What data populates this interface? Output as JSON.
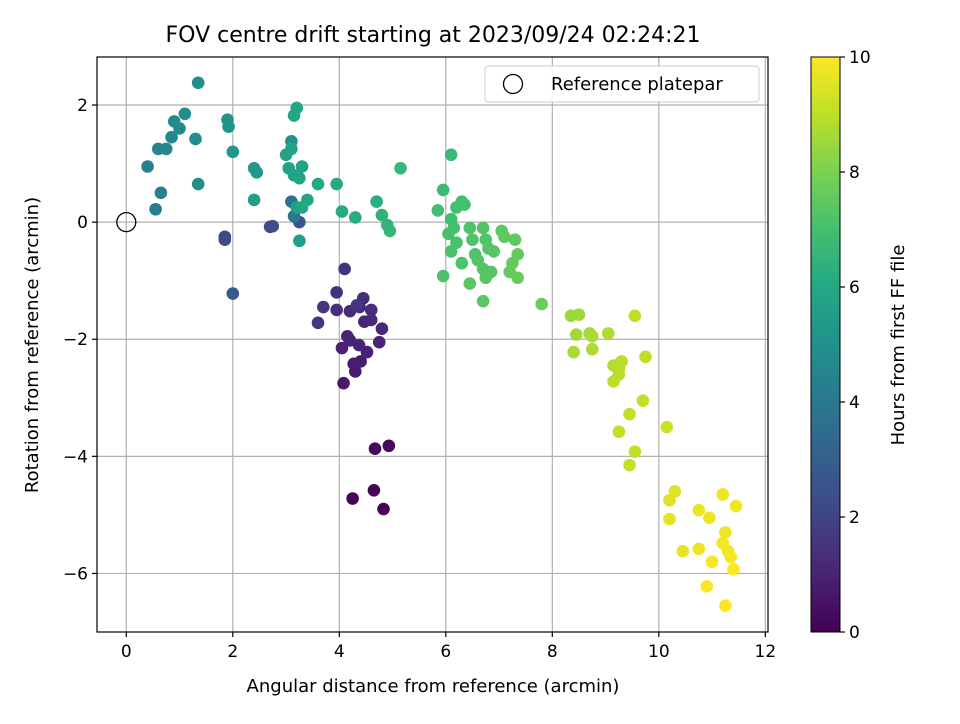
{
  "chart_data": {
    "type": "scatter",
    "title": "FOV centre drift starting at 2023/09/24 02:24:21",
    "xlabel": "Angular distance from reference (arcmin)",
    "ylabel": "Rotation from reference (arcmin)",
    "xlim": [
      -0.55,
      12.05
    ],
    "ylim": [
      -7.0,
      2.82
    ],
    "xticks": [
      0,
      2,
      4,
      6,
      8,
      10,
      12
    ],
    "xtick_labels": [
      "0",
      "2",
      "4",
      "6",
      "8",
      "10",
      "12"
    ],
    "yticks": [
      2,
      0,
      -2,
      -4,
      -6
    ],
    "ytick_labels": [
      "2",
      "0",
      "−2",
      "−4",
      "−6"
    ],
    "grid": true,
    "legend": {
      "position": "top-right",
      "entries": [
        "Reference platepar"
      ]
    },
    "reference_point": {
      "x": 0,
      "y": 0
    },
    "colorbar": {
      "label": "Hours from first FF file",
      "colormap": "viridis",
      "range": [
        0,
        10
      ],
      "ticks": [
        0,
        2,
        4,
        6,
        8,
        10
      ],
      "tick_labels": [
        "0",
        "2",
        "4",
        "6",
        "8",
        "10"
      ]
    },
    "points": [
      {
        "x": 4.25,
        "y": -4.72,
        "c": 0.1
      },
      {
        "x": 4.65,
        "y": -4.58,
        "c": 0.1
      },
      {
        "x": 4.83,
        "y": -4.9,
        "c": 0.15
      },
      {
        "x": 4.67,
        "y": -3.87,
        "c": 0.2
      },
      {
        "x": 4.93,
        "y": -3.82,
        "c": 0.25
      },
      {
        "x": 4.08,
        "y": -2.75,
        "c": 0.7
      },
      {
        "x": 4.3,
        "y": -2.55,
        "c": 0.75
      },
      {
        "x": 4.27,
        "y": -2.42,
        "c": 0.8
      },
      {
        "x": 4.4,
        "y": -2.38,
        "c": 0.8
      },
      {
        "x": 4.52,
        "y": -2.22,
        "c": 0.9
      },
      {
        "x": 4.05,
        "y": -2.15,
        "c": 0.9
      },
      {
        "x": 4.2,
        "y": -2.02,
        "c": 0.95
      },
      {
        "x": 4.37,
        "y": -2.1,
        "c": 1.0
      },
      {
        "x": 4.75,
        "y": -2.05,
        "c": 1.0
      },
      {
        "x": 4.15,
        "y": -1.95,
        "c": 1.05
      },
      {
        "x": 4.47,
        "y": -1.7,
        "c": 1.1
      },
      {
        "x": 4.8,
        "y": -1.82,
        "c": 1.1
      },
      {
        "x": 4.6,
        "y": -1.67,
        "c": 1.15
      },
      {
        "x": 4.38,
        "y": -1.45,
        "c": 1.2
      },
      {
        "x": 4.2,
        "y": -1.52,
        "c": 1.2
      },
      {
        "x": 4.45,
        "y": -1.3,
        "c": 1.25
      },
      {
        "x": 4.6,
        "y": -1.5,
        "c": 1.3
      },
      {
        "x": 3.95,
        "y": -1.5,
        "c": 1.35
      },
      {
        "x": 3.95,
        "y": -1.2,
        "c": 1.4
      },
      {
        "x": 4.1,
        "y": -0.8,
        "c": 1.45
      },
      {
        "x": 3.7,
        "y": -1.45,
        "c": 1.5
      },
      {
        "x": 3.6,
        "y": -1.72,
        "c": 1.55
      },
      {
        "x": 4.33,
        "y": -1.42,
        "c": 1.6
      },
      {
        "x": 1.85,
        "y": -0.25,
        "c": 2.2
      },
      {
        "x": 1.85,
        "y": -0.3,
        "c": 2.2
      },
      {
        "x": 2.0,
        "y": -1.22,
        "c": 2.8
      },
      {
        "x": 2.7,
        "y": -0.08,
        "c": 2.3
      },
      {
        "x": 2.75,
        "y": -0.07,
        "c": 2.35
      },
      {
        "x": 3.25,
        "y": 0.0,
        "c": 2.5
      },
      {
        "x": 3.1,
        "y": 0.35,
        "c": 3.8
      },
      {
        "x": 3.15,
        "y": 0.1,
        "c": 4.0
      },
      {
        "x": 0.55,
        "y": 0.22,
        "c": 4.2
      },
      {
        "x": 0.65,
        "y": 0.5,
        "c": 4.3
      },
      {
        "x": 0.4,
        "y": 0.95,
        "c": 4.4
      },
      {
        "x": 0.6,
        "y": 1.25,
        "c": 4.5
      },
      {
        "x": 0.75,
        "y": 1.25,
        "c": 4.5
      },
      {
        "x": 0.85,
        "y": 1.45,
        "c": 4.6
      },
      {
        "x": 1.0,
        "y": 1.6,
        "c": 4.7
      },
      {
        "x": 0.9,
        "y": 1.72,
        "c": 4.8
      },
      {
        "x": 1.1,
        "y": 1.85,
        "c": 4.8
      },
      {
        "x": 1.3,
        "y": 1.42,
        "c": 4.85
      },
      {
        "x": 1.35,
        "y": 2.38,
        "c": 4.9
      },
      {
        "x": 1.35,
        "y": 0.65,
        "c": 4.95
      },
      {
        "x": 3.1,
        "y": 1.38,
        "c": 5.0
      },
      {
        "x": 1.9,
        "y": 1.75,
        "c": 5.1
      },
      {
        "x": 1.92,
        "y": 1.63,
        "c": 5.15
      },
      {
        "x": 2.0,
        "y": 1.2,
        "c": 5.3
      },
      {
        "x": 2.4,
        "y": 0.92,
        "c": 5.4
      },
      {
        "x": 2.45,
        "y": 0.85,
        "c": 5.4
      },
      {
        "x": 2.4,
        "y": 0.38,
        "c": 5.5
      },
      {
        "x": 3.2,
        "y": 0.25,
        "c": 5.6
      },
      {
        "x": 3.25,
        "y": -0.32,
        "c": 5.6
      },
      {
        "x": 3.05,
        "y": 0.92,
        "c": 5.7
      },
      {
        "x": 3.0,
        "y": 1.15,
        "c": 5.7
      },
      {
        "x": 3.1,
        "y": 1.25,
        "c": 5.75
      },
      {
        "x": 3.15,
        "y": 0.8,
        "c": 5.8
      },
      {
        "x": 3.3,
        "y": 0.95,
        "c": 5.8
      },
      {
        "x": 3.25,
        "y": 0.75,
        "c": 5.85
      },
      {
        "x": 3.15,
        "y": 1.82,
        "c": 5.9
      },
      {
        "x": 3.2,
        "y": 1.95,
        "c": 5.9
      },
      {
        "x": 3.4,
        "y": 0.38,
        "c": 5.95
      },
      {
        "x": 3.3,
        "y": 0.25,
        "c": 6.0
      },
      {
        "x": 3.6,
        "y": 0.65,
        "c": 6.0
      },
      {
        "x": 3.95,
        "y": 0.65,
        "c": 6.1
      },
      {
        "x": 4.05,
        "y": 0.18,
        "c": 6.15
      },
      {
        "x": 4.3,
        "y": 0.08,
        "c": 6.2
      },
      {
        "x": 4.7,
        "y": 0.35,
        "c": 6.3
      },
      {
        "x": 4.8,
        "y": 0.12,
        "c": 6.4
      },
      {
        "x": 4.9,
        "y": -0.05,
        "c": 6.5
      },
      {
        "x": 4.95,
        "y": -0.15,
        "c": 6.55
      },
      {
        "x": 5.15,
        "y": 0.92,
        "c": 6.6
      },
      {
        "x": 6.1,
        "y": 1.15,
        "c": 6.7
      },
      {
        "x": 5.95,
        "y": 0.55,
        "c": 6.8
      },
      {
        "x": 5.85,
        "y": 0.2,
        "c": 6.9
      },
      {
        "x": 6.1,
        "y": 0.05,
        "c": 6.9
      },
      {
        "x": 6.2,
        "y": 0.25,
        "c": 6.95
      },
      {
        "x": 6.3,
        "y": 0.35,
        "c": 7.0
      },
      {
        "x": 6.35,
        "y": 0.3,
        "c": 7.0
      },
      {
        "x": 6.15,
        "y": -0.1,
        "c": 7.05
      },
      {
        "x": 6.05,
        "y": -0.2,
        "c": 7.05
      },
      {
        "x": 6.2,
        "y": -0.35,
        "c": 7.1
      },
      {
        "x": 6.1,
        "y": -0.5,
        "c": 7.1
      },
      {
        "x": 5.95,
        "y": -0.92,
        "c": 7.15
      },
      {
        "x": 6.3,
        "y": -0.7,
        "c": 7.15
      },
      {
        "x": 6.45,
        "y": -0.1,
        "c": 7.2
      },
      {
        "x": 6.5,
        "y": -0.3,
        "c": 7.2
      },
      {
        "x": 6.55,
        "y": -0.55,
        "c": 7.2
      },
      {
        "x": 6.7,
        "y": -0.1,
        "c": 7.25
      },
      {
        "x": 6.75,
        "y": -0.3,
        "c": 7.25
      },
      {
        "x": 6.8,
        "y": -0.45,
        "c": 7.3
      },
      {
        "x": 6.6,
        "y": -0.65,
        "c": 7.3
      },
      {
        "x": 6.7,
        "y": -0.8,
        "c": 7.3
      },
      {
        "x": 6.85,
        "y": -0.85,
        "c": 7.35
      },
      {
        "x": 6.9,
        "y": -0.5,
        "c": 7.35
      },
      {
        "x": 6.75,
        "y": -0.95,
        "c": 7.35
      },
      {
        "x": 6.45,
        "y": -1.05,
        "c": 7.4
      },
      {
        "x": 6.7,
        "y": -1.35,
        "c": 7.4
      },
      {
        "x": 7.05,
        "y": -0.15,
        "c": 7.45
      },
      {
        "x": 7.1,
        "y": -0.25,
        "c": 7.5
      },
      {
        "x": 7.3,
        "y": -0.3,
        "c": 7.5
      },
      {
        "x": 7.35,
        "y": -0.55,
        "c": 7.55
      },
      {
        "x": 7.25,
        "y": -0.7,
        "c": 7.6
      },
      {
        "x": 7.2,
        "y": -0.85,
        "c": 7.6
      },
      {
        "x": 7.35,
        "y": -0.95,
        "c": 7.65
      },
      {
        "x": 7.8,
        "y": -1.4,
        "c": 7.7
      },
      {
        "x": 8.35,
        "y": -1.6,
        "c": 8.5
      },
      {
        "x": 8.5,
        "y": -1.58,
        "c": 8.55
      },
      {
        "x": 8.45,
        "y": -1.92,
        "c": 8.6
      },
      {
        "x": 8.7,
        "y": -1.9,
        "c": 8.65
      },
      {
        "x": 8.75,
        "y": -1.95,
        "c": 8.7
      },
      {
        "x": 8.4,
        "y": -2.22,
        "c": 8.7
      },
      {
        "x": 8.75,
        "y": -2.17,
        "c": 8.75
      },
      {
        "x": 9.05,
        "y": -1.9,
        "c": 8.8
      },
      {
        "x": 9.15,
        "y": -2.45,
        "c": 8.85
      },
      {
        "x": 9.25,
        "y": -2.5,
        "c": 8.9
      },
      {
        "x": 9.3,
        "y": -2.38,
        "c": 8.9
      },
      {
        "x": 9.15,
        "y": -2.72,
        "c": 8.95
      },
      {
        "x": 9.25,
        "y": -2.6,
        "c": 8.95
      },
      {
        "x": 9.55,
        "y": -1.6,
        "c": 9.0
      },
      {
        "x": 9.75,
        "y": -2.3,
        "c": 9.0
      },
      {
        "x": 9.45,
        "y": -3.28,
        "c": 9.05
      },
      {
        "x": 9.7,
        "y": -3.05,
        "c": 9.05
      },
      {
        "x": 9.25,
        "y": -3.58,
        "c": 9.1
      },
      {
        "x": 9.55,
        "y": -3.92,
        "c": 9.1
      },
      {
        "x": 9.45,
        "y": -4.15,
        "c": 9.15
      },
      {
        "x": 10.15,
        "y": -3.5,
        "c": 9.2
      },
      {
        "x": 10.3,
        "y": -4.6,
        "c": 9.5
      },
      {
        "x": 10.2,
        "y": -4.75,
        "c": 9.55
      },
      {
        "x": 10.2,
        "y": -5.07,
        "c": 9.6
      },
      {
        "x": 10.45,
        "y": -5.62,
        "c": 9.65
      },
      {
        "x": 10.75,
        "y": -5.58,
        "c": 9.7
      },
      {
        "x": 10.75,
        "y": -4.92,
        "c": 9.7
      },
      {
        "x": 10.95,
        "y": -5.05,
        "c": 9.75
      },
      {
        "x": 11.2,
        "y": -4.65,
        "c": 9.75
      },
      {
        "x": 11.45,
        "y": -4.85,
        "c": 9.8
      },
      {
        "x": 11.25,
        "y": -5.3,
        "c": 9.8
      },
      {
        "x": 11.2,
        "y": -5.48,
        "c": 9.85
      },
      {
        "x": 11.3,
        "y": -5.62,
        "c": 9.85
      },
      {
        "x": 11.35,
        "y": -5.72,
        "c": 9.9
      },
      {
        "x": 11.0,
        "y": -5.8,
        "c": 9.9
      },
      {
        "x": 11.4,
        "y": -5.93,
        "c": 9.95
      },
      {
        "x": 10.9,
        "y": -6.22,
        "c": 9.95
      },
      {
        "x": 11.25,
        "y": -6.55,
        "c": 10.0
      }
    ]
  }
}
